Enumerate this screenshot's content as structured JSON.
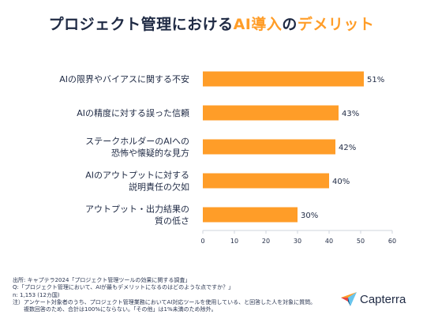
{
  "title": {
    "part1": "プロジェクト管理における",
    "accent": "AI導入",
    "part2": "の",
    "accent2": "デメリット"
  },
  "chart_data": {
    "type": "bar",
    "orientation": "horizontal",
    "categories": [
      [
        "AIの限界やバイアスに関する不安"
      ],
      [
        "AIの精度に対する誤った信頼"
      ],
      [
        "ステークホルダーのAIへの",
        "恐怖や懐疑的な見方"
      ],
      [
        "AIのアウトプットに対する",
        "説明責任の欠如"
      ],
      [
        "アウトプット・出力結果の",
        "質の低さ"
      ]
    ],
    "values": [
      51,
      43,
      42,
      40,
      30
    ],
    "value_labels": [
      "51%",
      "43%",
      "42%",
      "40%",
      "30%"
    ],
    "xlim": [
      0,
      60
    ],
    "xticks": [
      0,
      10,
      20,
      30,
      40,
      50,
      60
    ],
    "grid": false,
    "bar_color": "#ff9d28"
  },
  "notes": {
    "source": "出所: キャプテラ2024「プロジェクト管理ツールの効果に関する調査」",
    "question": "Q:「プロジェクト管理において、AIが最もデメリットになるのはどのような点ですか？」",
    "n": "n: 1,153 (12カ国)",
    "note1": "注）アンケート対象者のうち、プロジェクト管理業務においてAI対応ツールを使用している、と回答した人を対象に質問。",
    "note2": "複数回答のため、合計は100%にならない。「その他」は1%未満のため除外。"
  },
  "logo": {
    "text": "Capterra",
    "icon": "capterra-arrow-icon",
    "colors": [
      "#ff9d28",
      "#68c5ed",
      "#044d80",
      "#e54747"
    ]
  }
}
